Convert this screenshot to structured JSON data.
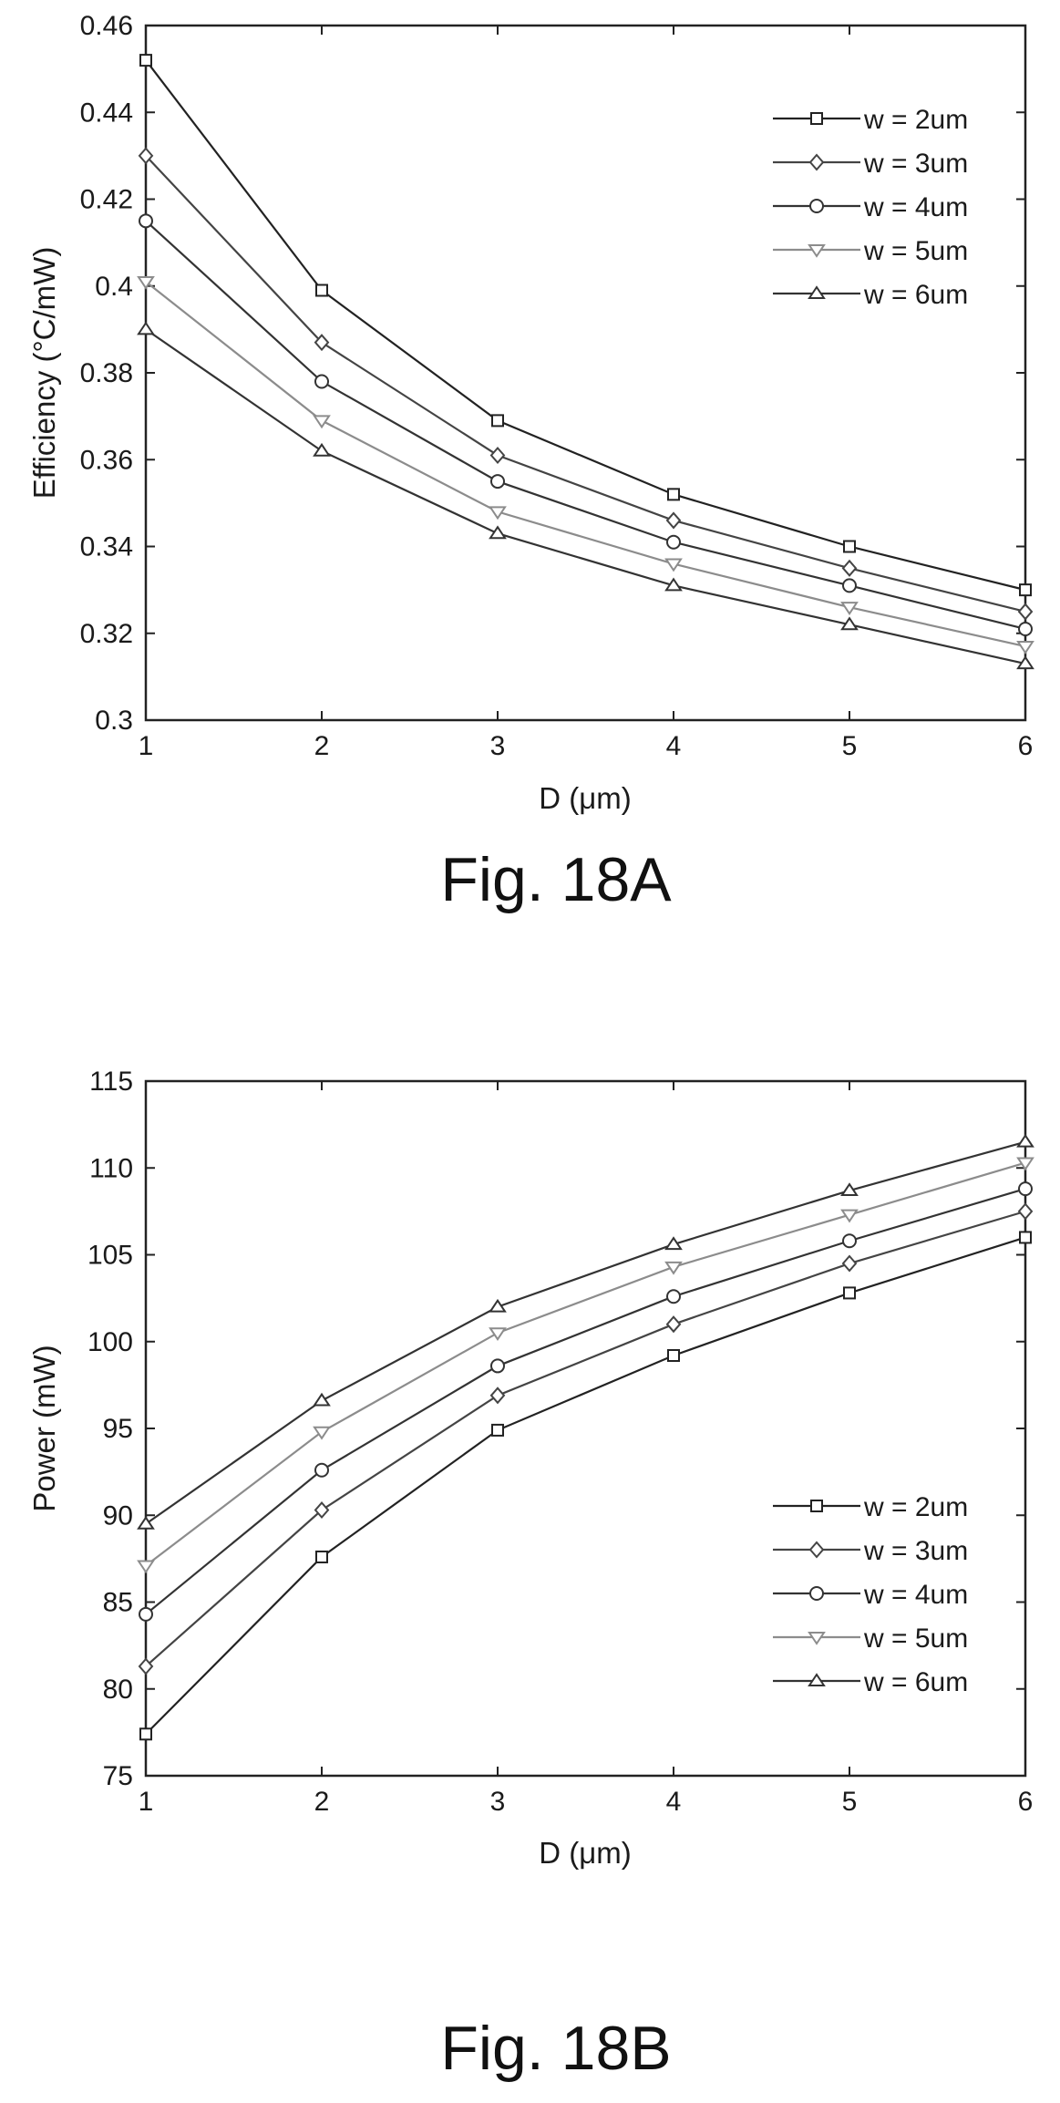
{
  "chart_data": [
    {
      "type": "line",
      "caption": "Fig. 18A",
      "xlabel": "D (μm)",
      "ylabel": "Efficiency (°C/mW)",
      "x": [
        1,
        2,
        3,
        4,
        5,
        6
      ],
      "xlim": [
        1,
        6
      ],
      "ylim": [
        0.3,
        0.46
      ],
      "xticks": [
        "1",
        "2",
        "3",
        "4",
        "5",
        "6"
      ],
      "yticks": [
        "0.3",
        "0.32",
        "0.34",
        "0.36",
        "0.38",
        "0.4",
        "0.42",
        "0.44",
        "0.46"
      ],
      "grid": false,
      "legend_position": "top-right",
      "series": [
        {
          "name": "w = 2um",
          "marker": "square",
          "color": "#222222",
          "values": [
            0.452,
            0.399,
            0.369,
            0.352,
            0.34,
            0.33
          ]
        },
        {
          "name": "w = 3um",
          "marker": "diamond",
          "color": "#444444",
          "values": [
            0.43,
            0.387,
            0.361,
            0.346,
            0.335,
            0.325
          ]
        },
        {
          "name": "w = 4um",
          "marker": "circle",
          "color": "#333333",
          "values": [
            0.415,
            0.378,
            0.355,
            0.341,
            0.331,
            0.321
          ]
        },
        {
          "name": "w = 5um",
          "marker": "triangle-down",
          "color": "#8c8c8c",
          "values": [
            0.401,
            0.369,
            0.348,
            0.336,
            0.326,
            0.317
          ]
        },
        {
          "name": "w = 6um",
          "marker": "triangle-up",
          "color": "#333333",
          "values": [
            0.39,
            0.362,
            0.343,
            0.331,
            0.322,
            0.313
          ]
        }
      ]
    },
    {
      "type": "line",
      "caption": "Fig. 18B",
      "xlabel": "D (μm)",
      "ylabel": "Power (mW)",
      "x": [
        1,
        2,
        3,
        4,
        5,
        6
      ],
      "xlim": [
        1,
        6
      ],
      "ylim": [
        75,
        115
      ],
      "xticks": [
        "1",
        "2",
        "3",
        "4",
        "5",
        "6"
      ],
      "yticks": [
        "75",
        "80",
        "85",
        "90",
        "95",
        "100",
        "105",
        "110",
        "115"
      ],
      "grid": false,
      "legend_position": "bottom-right",
      "series": [
        {
          "name": "w = 2um",
          "marker": "square",
          "color": "#222222",
          "values": [
            77.4,
            87.6,
            94.9,
            99.2,
            102.8,
            106.0
          ]
        },
        {
          "name": "w = 3um",
          "marker": "diamond",
          "color": "#444444",
          "values": [
            81.3,
            90.3,
            96.9,
            101.0,
            104.5,
            107.5
          ]
        },
        {
          "name": "w = 4um",
          "marker": "circle",
          "color": "#333333",
          "values": [
            84.3,
            92.6,
            98.6,
            102.6,
            105.8,
            108.8
          ]
        },
        {
          "name": "w = 5um",
          "marker": "triangle-down",
          "color": "#8c8c8c",
          "values": [
            87.1,
            94.8,
            100.5,
            104.3,
            107.3,
            110.3
          ]
        },
        {
          "name": "w = 6um",
          "marker": "triangle-up",
          "color": "#333333",
          "values": [
            89.5,
            96.6,
            102.0,
            105.6,
            108.7,
            111.5
          ]
        }
      ]
    }
  ]
}
